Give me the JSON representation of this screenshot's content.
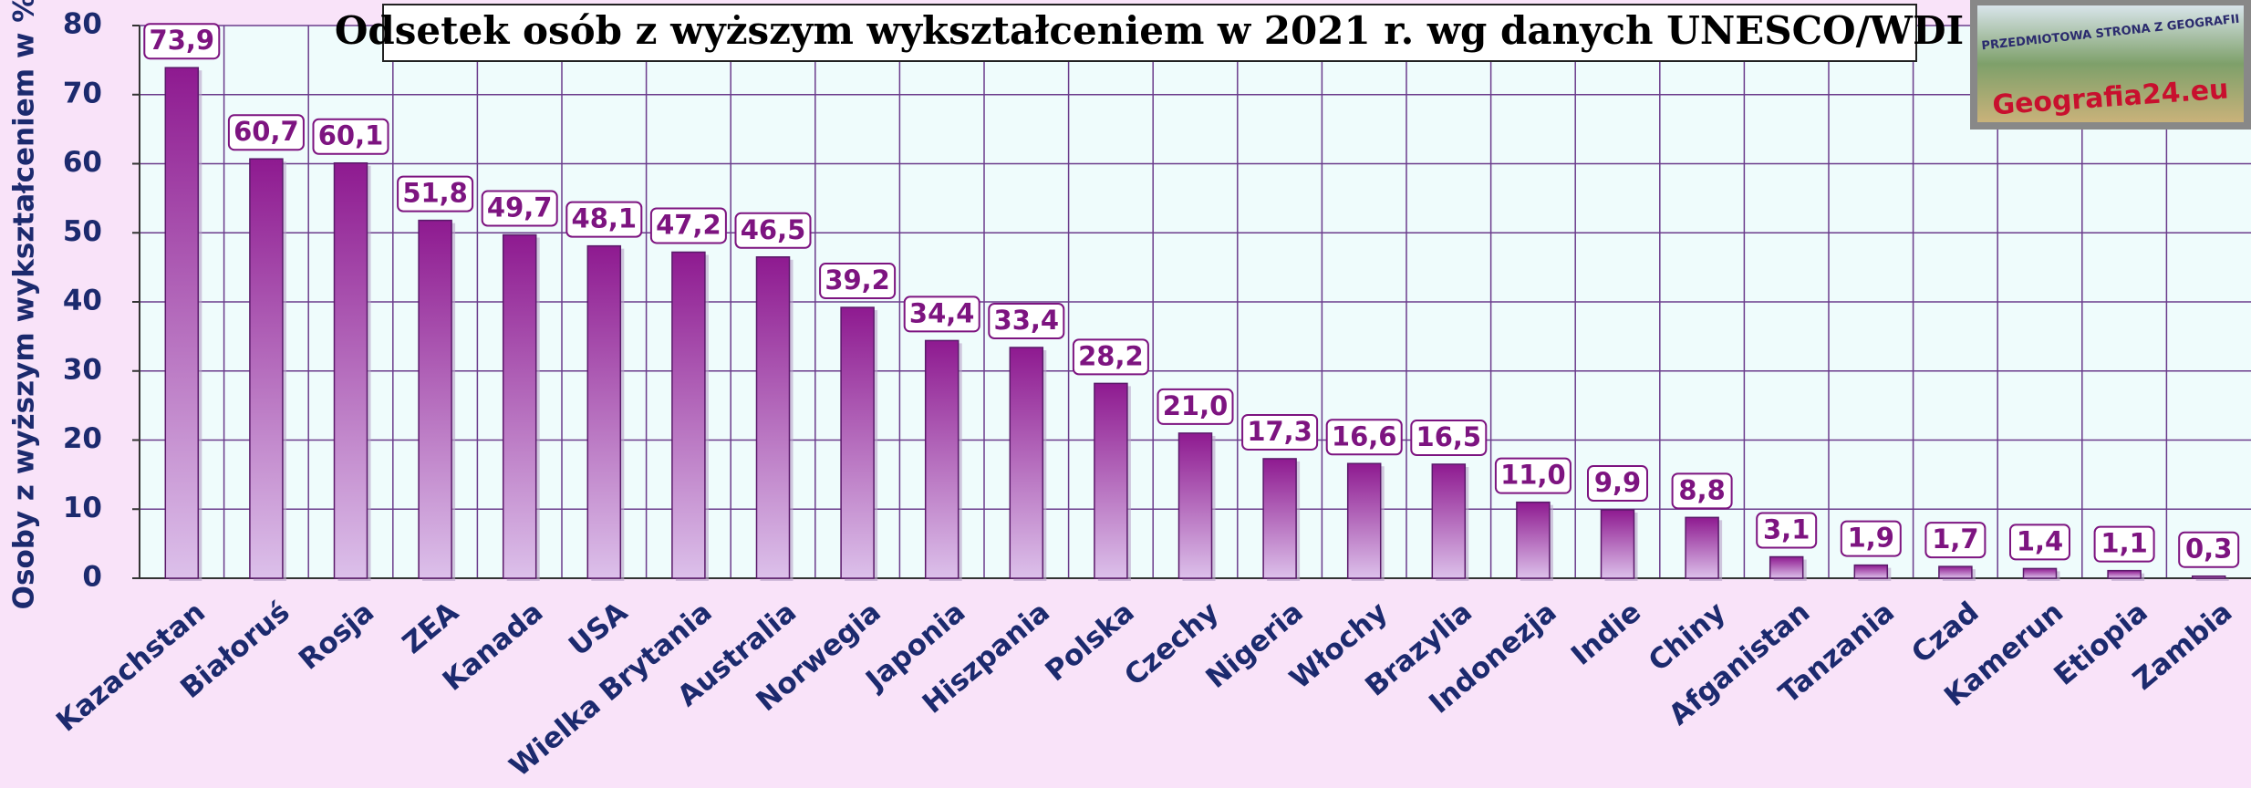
{
  "chart_data": {
    "type": "bar",
    "title": "Odsetek osób z wyższym wykształceniem w 2021 r. wg danych UNESCO/WDI",
    "y_label": "Osoby z wyższym wykształceniem w %",
    "annotations": [
      "PRZEDMIOTOWA STRONA Z GEOGRAFII",
      "Geografia24.eu"
    ],
    "categories": [
      "Kazachstan",
      "Białoruś",
      "Rosja",
      "ZEA",
      "Kanada",
      "USA",
      "Wielka Brytania",
      "Australia",
      "Norwegia",
      "Japonia",
      "Hiszpania",
      "Polska",
      "Czechy",
      "Nigeria",
      "Włochy",
      "Brazylia",
      "Indonezja",
      "Indie",
      "Chiny",
      "Afganistan",
      "Tanzania",
      "Czad",
      "Kamerun",
      "Etiopia",
      "Zambia"
    ],
    "values": [
      73.9,
      60.7,
      60.1,
      51.8,
      49.7,
      48.1,
      47.2,
      46.5,
      39.2,
      34.4,
      33.4,
      28.2,
      21.0,
      17.3,
      16.6,
      16.5,
      11.0,
      9.9,
      8.8,
      3.1,
      1.9,
      1.7,
      1.4,
      1.1,
      0.3
    ],
    "value_labels": [
      "73,9",
      "60,7",
      "60,1",
      "51,8",
      "49,7",
      "48,1",
      "47,2",
      "46,5",
      "39,2",
      "34,4",
      "33,4",
      "28,2",
      "21,0",
      "17,3",
      "16,6",
      "16,5",
      "11,0",
      "9,9",
      "8,8",
      "3,1",
      "1,9",
      "1,7",
      "1,4",
      "1,1",
      "0,3"
    ],
    "color": "#8e1a90",
    "ylim": [
      0,
      80
    ],
    "yticks": [
      0,
      10,
      20,
      30,
      40,
      50,
      60,
      70,
      80
    ],
    "grid": true
  }
}
